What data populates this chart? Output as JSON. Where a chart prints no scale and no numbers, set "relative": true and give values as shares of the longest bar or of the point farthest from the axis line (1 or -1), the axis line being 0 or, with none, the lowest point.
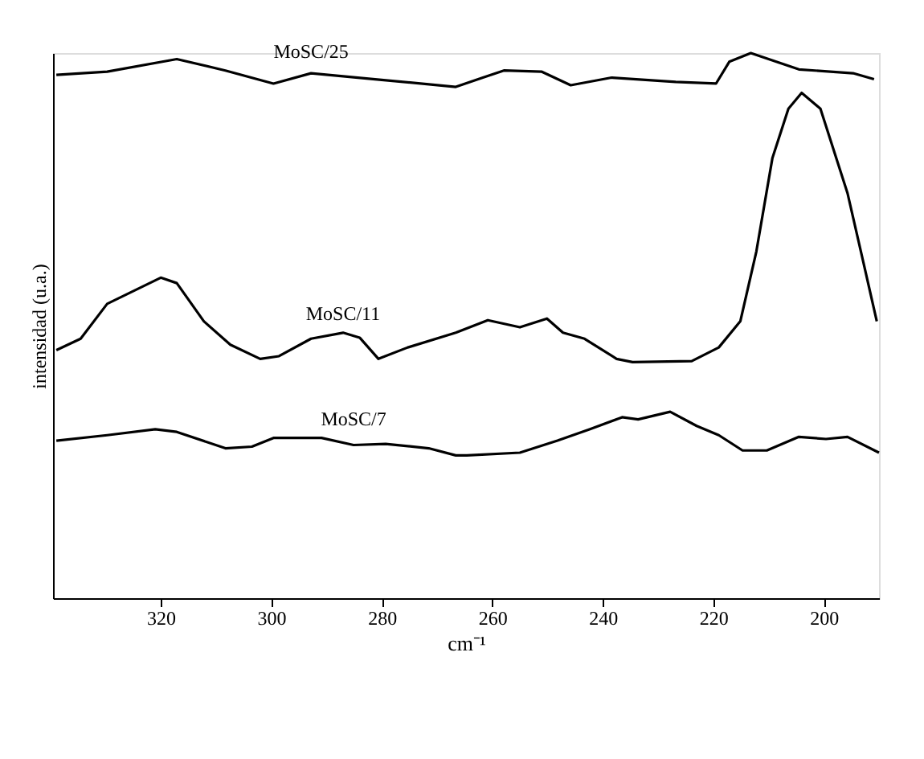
{
  "chart_data": {
    "type": "line",
    "xlabel": "cm⁻¹",
    "ylabel": "intensidad (u.a.)",
    "relative": true,
    "xlim": [
      339.5,
      190
    ],
    "xticks": [
      320,
      300,
      280,
      260,
      240,
      220,
      200
    ],
    "grid": false,
    "marker": "none",
    "line_style": "solid",
    "series": [
      {
        "name": "MoSC/25",
        "color": "#000000",
        "x": [
          338.9,
          329.7,
          317.1,
          308.3,
          299.6,
          292.8,
          281.2,
          266.6,
          261.7,
          257.9,
          251.1,
          245.8,
          238.4,
          226.8,
          219.5,
          217.1,
          213.2,
          204.5,
          194.7,
          190.9
        ],
        "values": [
          0.96,
          0.966,
          0.989,
          0.968,
          0.944,
          0.963,
          0.952,
          0.938,
          0.955,
          0.968,
          0.966,
          0.941,
          0.955,
          0.947,
          0.944,
          0.984,
          1.0,
          0.97,
          0.963,
          0.952
        ]
      },
      {
        "name": "MoSC/11",
        "color": "#000000",
        "x": [
          338.9,
          334.5,
          329.7,
          320.0,
          317.1,
          312.2,
          307.4,
          302.0,
          298.6,
          292.8,
          287.0,
          284.0,
          280.6,
          275.3,
          266.6,
          260.8,
          255.0,
          250.1,
          247.2,
          243.3,
          237.5,
          234.6,
          223.9,
          219.0,
          215.1,
          212.2,
          209.3,
          206.4,
          204.0,
          200.6,
          195.7,
          192.8,
          190.4
        ],
        "values": [
          0.455,
          0.476,
          0.54,
          0.588,
          0.578,
          0.508,
          0.465,
          0.439,
          0.444,
          0.476,
          0.487,
          0.478,
          0.439,
          0.46,
          0.487,
          0.51,
          0.497,
          0.513,
          0.487,
          0.476,
          0.439,
          0.433,
          0.435,
          0.46,
          0.508,
          0.636,
          0.807,
          0.898,
          0.927,
          0.898,
          0.743,
          0.615,
          0.508
        ]
      },
      {
        "name": "MoSC/7",
        "color": "#000000",
        "x": [
          338.9,
          329.7,
          321.0,
          317.1,
          308.3,
          303.5,
          299.6,
          290.9,
          285.1,
          279.3,
          271.5,
          266.6,
          264.6,
          255.0,
          248.2,
          242.3,
          236.5,
          233.6,
          227.8,
          223.0,
          219.0,
          214.7,
          210.3,
          204.5,
          199.6,
          195.7,
          190.0
        ],
        "values": [
          0.289,
          0.299,
          0.31,
          0.305,
          0.275,
          0.278,
          0.294,
          0.294,
          0.281,
          0.283,
          0.275,
          0.262,
          0.262,
          0.267,
          0.289,
          0.31,
          0.332,
          0.328,
          0.342,
          0.316,
          0.299,
          0.271,
          0.271,
          0.296,
          0.292,
          0.296,
          0.267
        ]
      }
    ]
  }
}
